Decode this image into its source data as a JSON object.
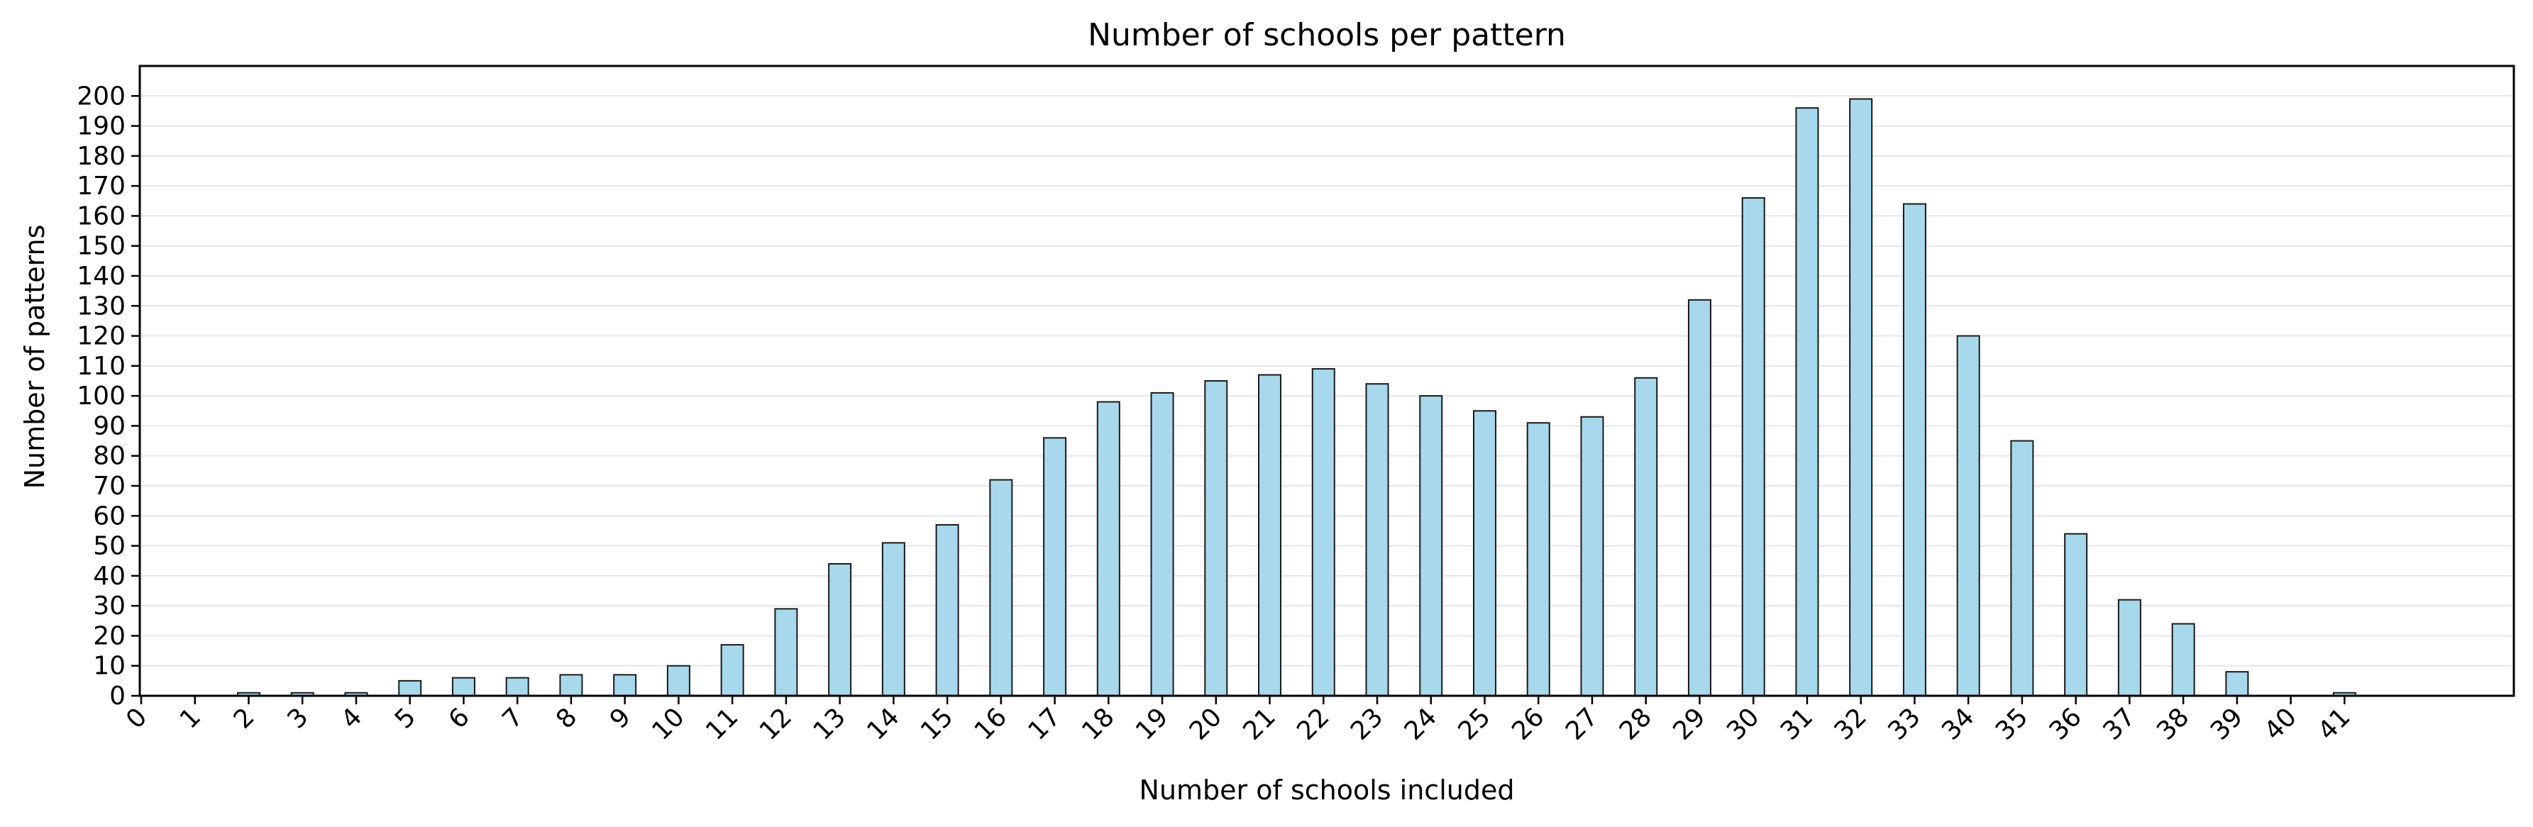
{
  "chart_data": {
    "type": "bar",
    "title": "Number of schools per pattern",
    "xlabel": "Number of schools included",
    "ylabel": "Number of patterns",
    "categories": [
      "0",
      "1",
      "2",
      "3",
      "4",
      "5",
      "6",
      "7",
      "8",
      "9",
      "10",
      "11",
      "12",
      "13",
      "14",
      "15",
      "16",
      "17",
      "18",
      "19",
      "20",
      "21",
      "22",
      "23",
      "24",
      "25",
      "26",
      "27",
      "28",
      "29",
      "30",
      "31",
      "32",
      "33",
      "34",
      "35",
      "36",
      "37",
      "38",
      "39",
      "40",
      "41"
    ],
    "values": [
      0,
      0,
      1,
      1,
      1,
      5,
      6,
      6,
      7,
      7,
      10,
      17,
      29,
      44,
      51,
      57,
      72,
      86,
      98,
      101,
      105,
      107,
      109,
      104,
      100,
      95,
      91,
      93,
      106,
      132,
      166,
      196,
      199,
      164,
      120,
      85,
      54,
      32,
      24,
      8,
      0,
      1
    ],
    "ylim": [
      0,
      210
    ],
    "yticks": [
      0,
      10,
      20,
      30,
      40,
      50,
      60,
      70,
      80,
      90,
      100,
      110,
      120,
      130,
      140,
      150,
      160,
      170,
      180,
      190,
      200
    ],
    "grid": "horizontal",
    "colors": {
      "bar_fill": "#a8d8ec",
      "bar_edge": "#1a1a1a",
      "grid": "#e6e6e6",
      "axis": "#000000"
    }
  }
}
